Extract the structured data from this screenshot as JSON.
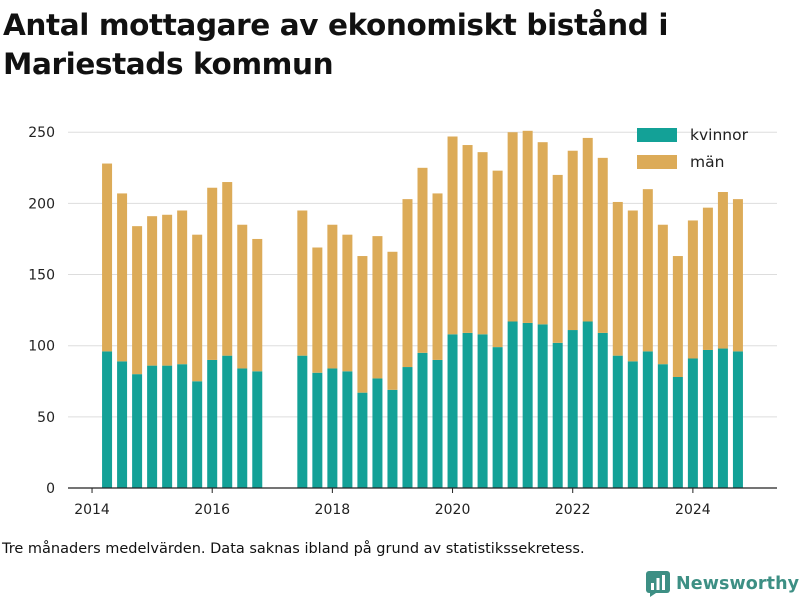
{
  "title": "Antal mottagare av ekonomiskt bistånd i Mariestads kommun",
  "footnote": "Tre månaders medelvärden. Data saknas ibland på grund av statistikssekretess.",
  "brand": {
    "name": "Newsworthy",
    "icon": "bar-chart-icon",
    "color": "#3d8f84"
  },
  "chart_data": {
    "type": "bar",
    "stacked": true,
    "title": "Antal mottagare av ekonomiskt bistånd i Mariestads kommun",
    "xlabel": "",
    "ylabel": "",
    "ylim": [
      0,
      260
    ],
    "xlim": [
      2013.6,
      2025.4
    ],
    "yticks": [
      0,
      50,
      100,
      150,
      200,
      250
    ],
    "xticks": [
      2014,
      2016,
      2018,
      2020,
      2022,
      2024
    ],
    "grid": "horizontal",
    "legend_position": "top-right",
    "colors": {
      "kvinnor": "#13a197",
      "män": "#dcab58"
    },
    "x": [
      "2014-04",
      "2014-07",
      "2014-10",
      "2015-01",
      "2015-04",
      "2015-07",
      "2015-10",
      "2016-01",
      "2016-04",
      "2016-07",
      "2016-10",
      "2017-07",
      "2017-10",
      "2018-01",
      "2018-04",
      "2018-07",
      "2018-10",
      "2019-01",
      "2019-04",
      "2019-07",
      "2019-10",
      "2020-01",
      "2020-04",
      "2020-07",
      "2020-10",
      "2021-01",
      "2021-04",
      "2021-07",
      "2021-10",
      "2022-01",
      "2022-04",
      "2022-07",
      "2022-10",
      "2023-01",
      "2023-04",
      "2023-07",
      "2023-10",
      "2024-01",
      "2024-04",
      "2024-07",
      "2024-10"
    ],
    "series": [
      {
        "name": "kvinnor",
        "values": [
          96,
          89,
          80,
          86,
          86,
          87,
          75,
          90,
          93,
          84,
          82,
          93,
          81,
          84,
          82,
          67,
          77,
          69,
          85,
          95,
          90,
          108,
          109,
          108,
          99,
          117,
          116,
          115,
          102,
          111,
          117,
          109,
          93,
          89,
          96,
          87,
          78,
          91,
          97,
          98,
          96
        ]
      },
      {
        "name": "män",
        "values": [
          132,
          118,
          104,
          105,
          106,
          108,
          103,
          121,
          122,
          101,
          93,
          102,
          88,
          101,
          96,
          96,
          100,
          97,
          118,
          130,
          117,
          139,
          132,
          128,
          124,
          133,
          135,
          128,
          118,
          126,
          129,
          123,
          108,
          106,
          114,
          98,
          85,
          97,
          100,
          110,
          107
        ]
      }
    ]
  }
}
